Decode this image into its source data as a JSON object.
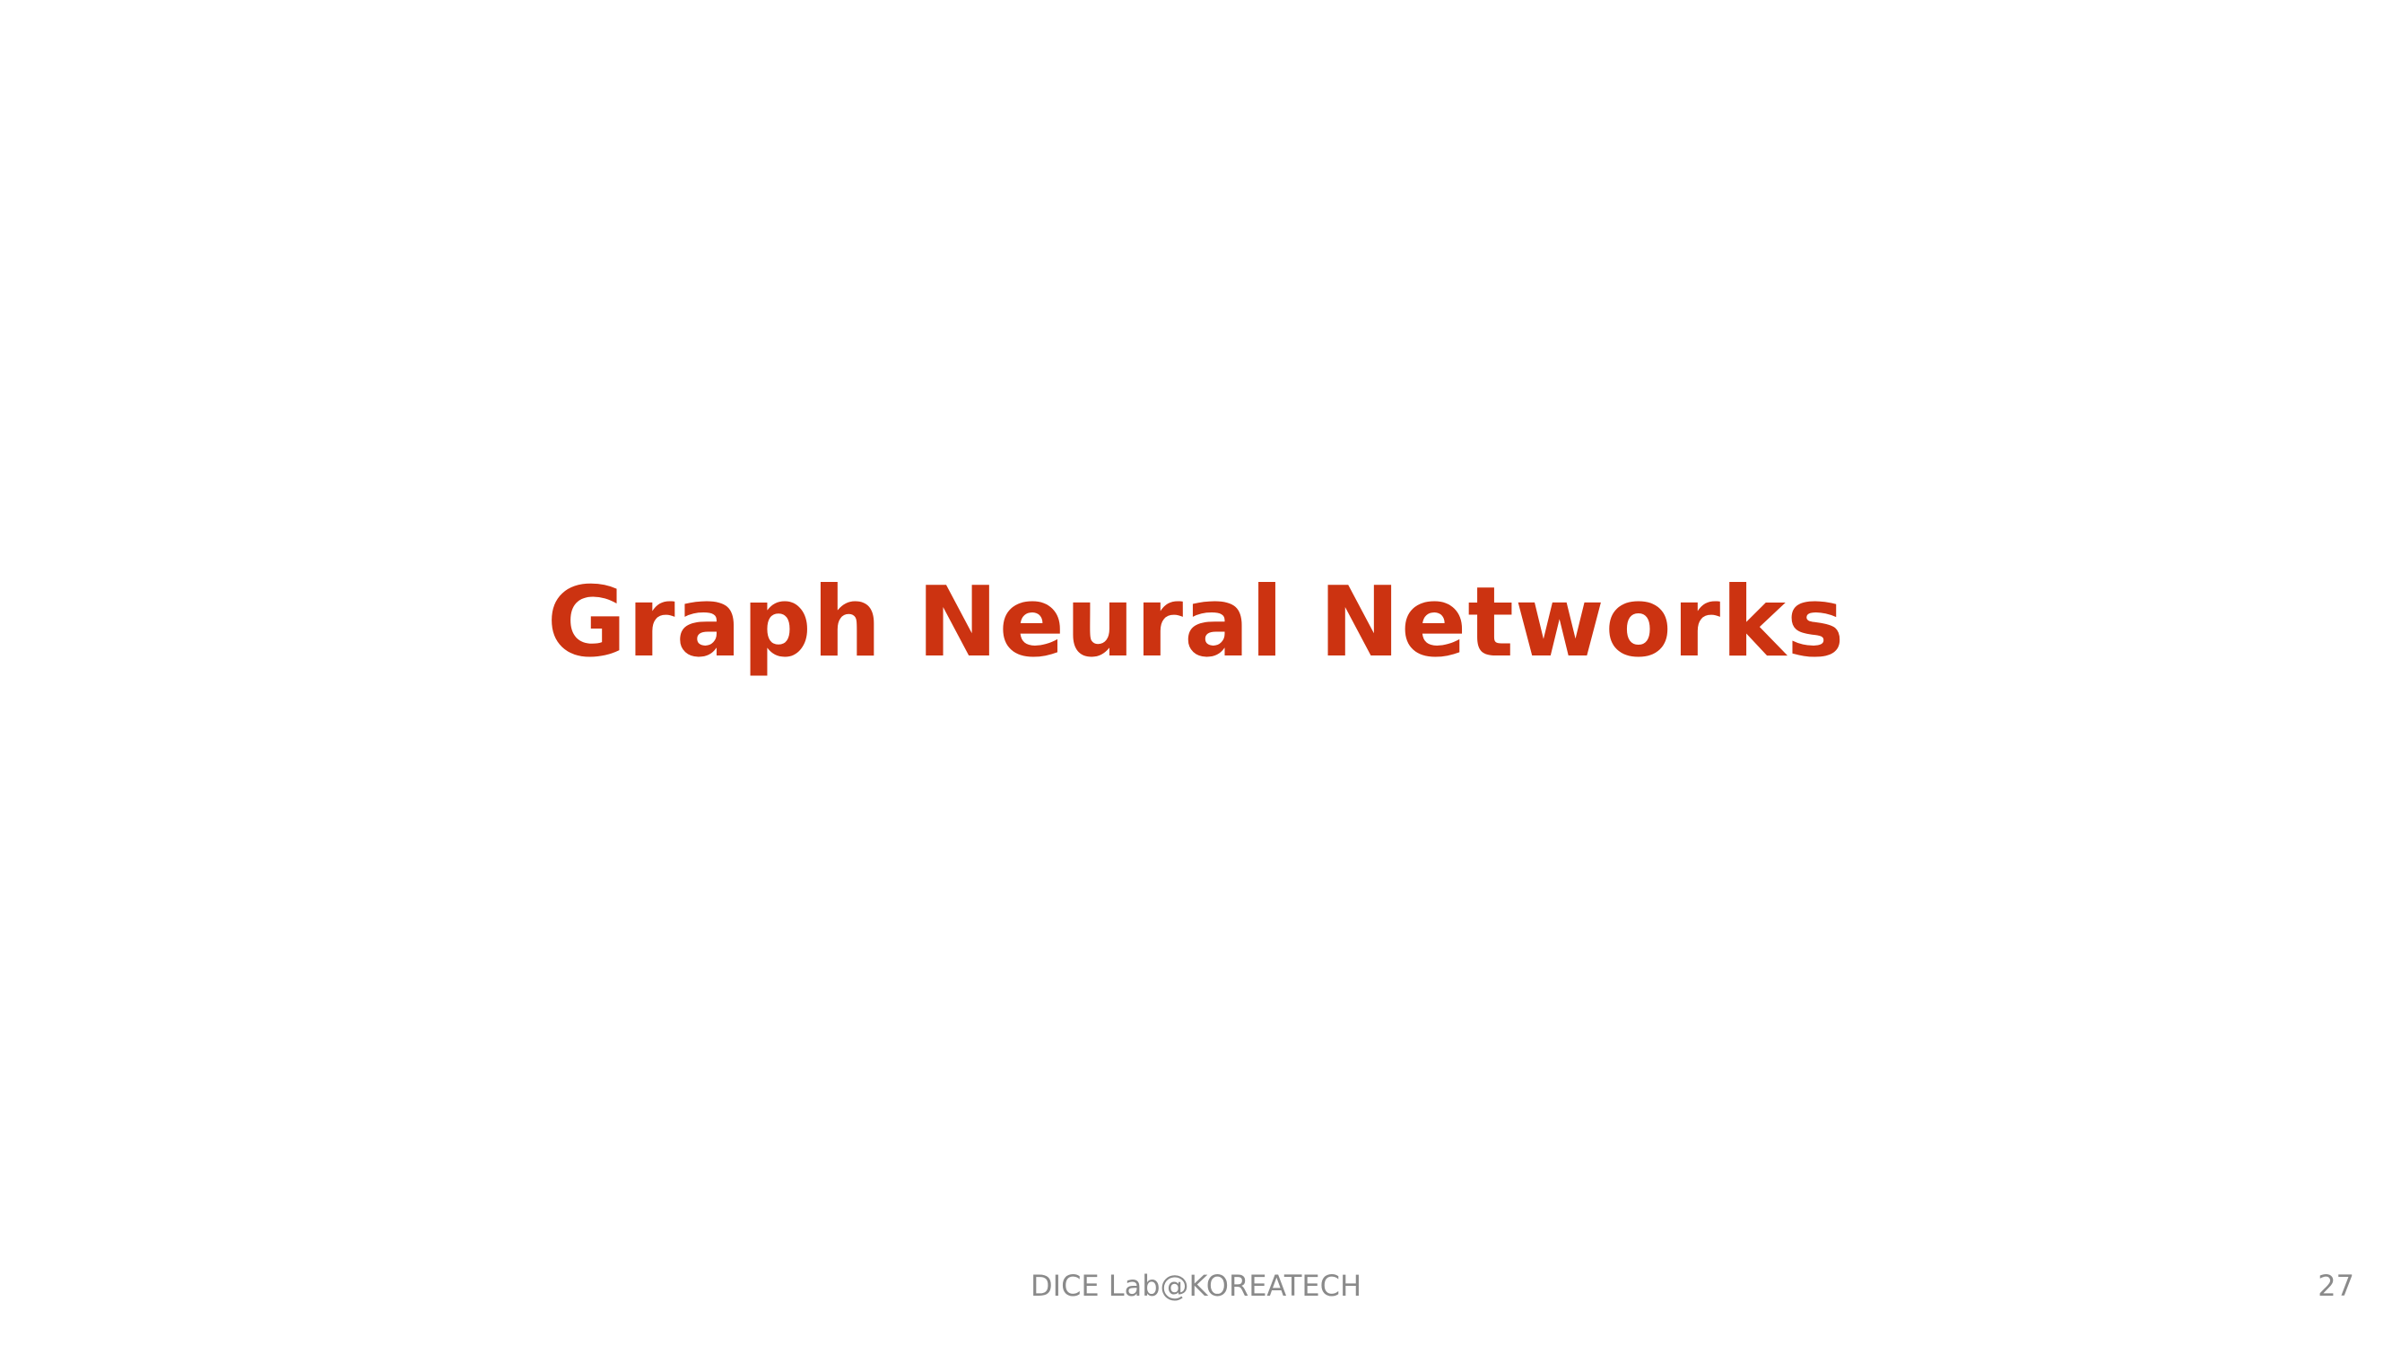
{
  "slide": {
    "title": "Graph Neural Networks",
    "footer": "DICE Lab@KOREATECH",
    "page_number": "27"
  },
  "colors": {
    "background": "#ffffff",
    "title": "#cc3311",
    "footer_text": "#8a8a8a"
  }
}
